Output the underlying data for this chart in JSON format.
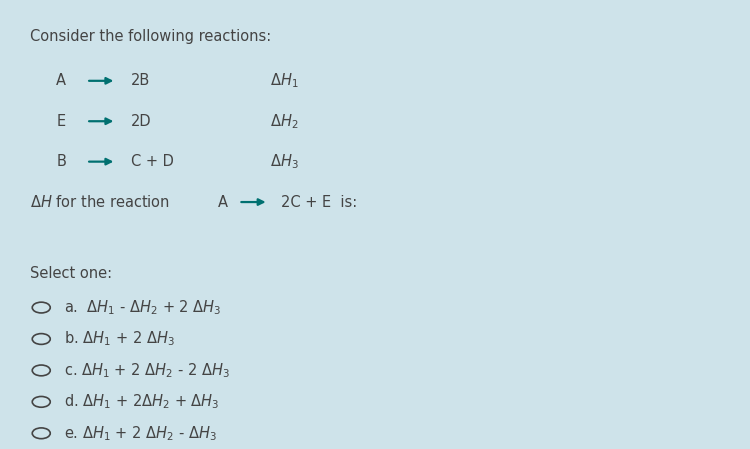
{
  "bg_color": "#cee3ea",
  "text_color": "#444444",
  "arrow_color": "#007070",
  "title": "Consider the following reactions:",
  "reactions": [
    {
      "lhs": "A",
      "rhs": "2B",
      "dh": "$\\Delta H_1$"
    },
    {
      "lhs": "E",
      "rhs": "2D",
      "dh": "$\\Delta H_2$"
    },
    {
      "lhs": "B",
      "rhs": "C + D",
      "dh": "$\\Delta H_3$"
    }
  ],
  "question_prefix": "$\\Delta H$ for the reaction",
  "q_lhs": "A",
  "q_rhs": "2C + E  is:",
  "select_label": "Select one:",
  "options": [
    "a.  $\\Delta H_1$ - $\\Delta H_2$ + 2 $\\Delta H_3$",
    "b. $\\Delta H_1$ + 2 $\\Delta H_3$",
    "c. $\\Delta H_1$ + 2 $\\Delta H_2$ - 2 $\\Delta H_3$",
    "d. $\\Delta H_1$ + 2$\\Delta H_2$ + $\\Delta H_3$",
    "e. $\\Delta H_1$ + 2 $\\Delta H_2$ - $\\Delta H_3$"
  ],
  "figsize": [
    7.5,
    4.49
  ],
  "dpi": 100
}
